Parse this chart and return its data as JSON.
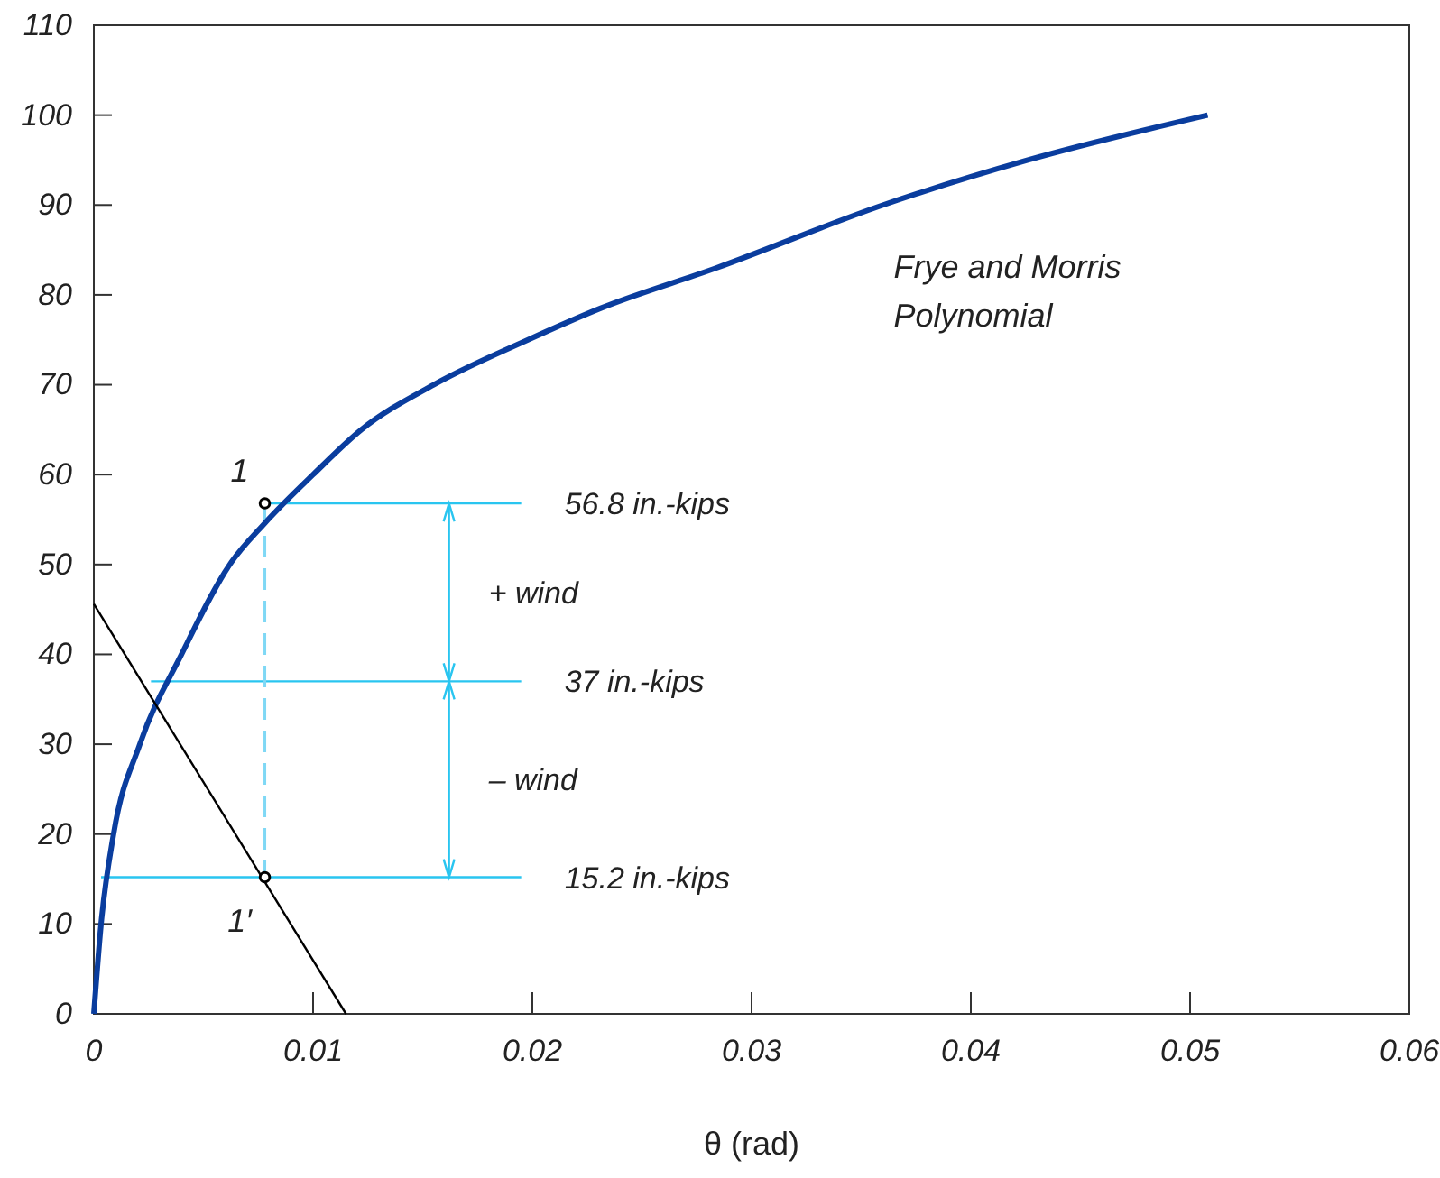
{
  "chart_data": {
    "type": "line",
    "xlabel": "θ (rad)",
    "xlim": [
      0,
      0.06
    ],
    "xticks": [
      0,
      0.01,
      0.02,
      0.03,
      0.04,
      0.05,
      0.06
    ],
    "ylim": [
      0,
      110
    ],
    "yticks": [
      0,
      10,
      20,
      30,
      40,
      50,
      60,
      70,
      80,
      90,
      100,
      110
    ],
    "grid": false,
    "legend": false,
    "series": [
      {
        "name": "Frye and Morris Polynomial",
        "color": "#0a3d9e",
        "x": [
          0,
          0.00033,
          0.0009,
          0.0021,
          0.004,
          0.0062,
          0.0078,
          0.01,
          0.0122,
          0.0155,
          0.0198,
          0.0231,
          0.0284,
          0.036,
          0.0426,
          0.0508
        ],
        "values": [
          0,
          10,
          20,
          30,
          40,
          50,
          54.6,
          60,
          65,
          70,
          75,
          78.5,
          83,
          90,
          95,
          100
        ]
      },
      {
        "color": "#000000",
        "x": [
          0,
          0.0115
        ],
        "values": [
          45.6,
          0
        ]
      },
      {
        "type": "scatter",
        "color": "#000000",
        "marker": "circle",
        "x": [
          0.0078,
          0.0078
        ],
        "values": [
          56.8,
          15.2
        ]
      }
    ],
    "ref_lines": [
      {
        "axis": "y",
        "value": 56.8,
        "label": "56.8 in.-kips",
        "color": "#29c5f0"
      },
      {
        "axis": "y",
        "value": 37,
        "label": "37 in.-kips",
        "color": "#29c5f0"
      },
      {
        "axis": "y",
        "value": 15.2,
        "label": "15.2 in.-kips",
        "color": "#29c5f0"
      }
    ],
    "annotations": [
      {
        "text": "1",
        "x": 0.0078,
        "y": 56.8
      },
      {
        "text": "1′",
        "x": 0.0078,
        "y": 15.2
      },
      "+ wind",
      "– wind"
    ]
  }
}
